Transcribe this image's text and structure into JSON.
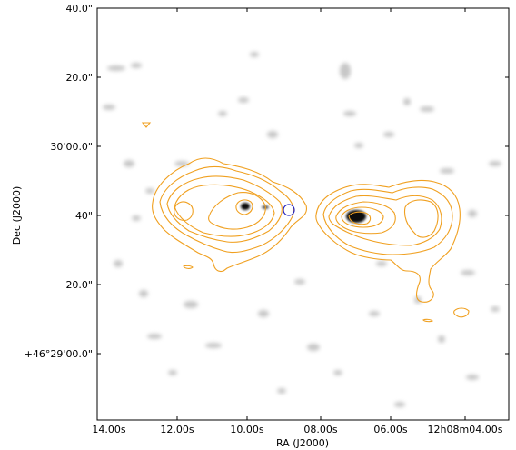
{
  "plot": {
    "ylabel": "Dec (J2000)",
    "xlabel": "RA (J2000)",
    "y_ticks": [
      "40.0\"",
      "20.0\"",
      "30'00.0\"",
      "40\"",
      "20.0\"",
      "+46°29'00.0\""
    ],
    "x_ticks": [
      "14.00s",
      "12.00s",
      "10.00s",
      "08.00s",
      "06.00s",
      "12h08m04.00s"
    ],
    "colors": {
      "contour": "#f0a020",
      "marker_circle": "#2020c0",
      "background": "#ffffff",
      "frame": "#000000"
    }
  }
}
